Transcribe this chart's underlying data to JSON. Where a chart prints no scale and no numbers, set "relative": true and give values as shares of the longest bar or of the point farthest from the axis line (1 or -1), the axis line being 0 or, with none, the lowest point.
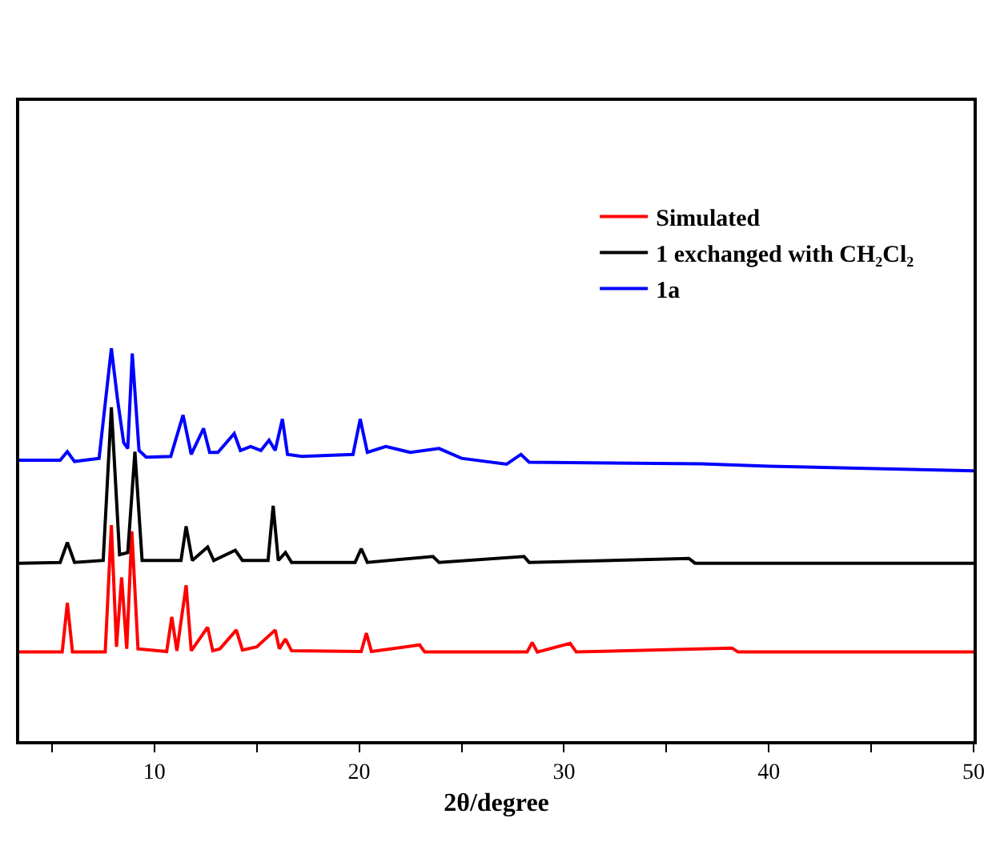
{
  "chart_data": {
    "type": "line",
    "relative": true,
    "xlabel": "2θ/degree",
    "xlim": [
      3.4,
      50
    ],
    "xticks": [
      {
        "value": 5,
        "label": null
      },
      10,
      {
        "value": 15,
        "label": null
      },
      20,
      {
        "value": 25,
        "label": null
      },
      30,
      {
        "value": 35,
        "label": null
      },
      40,
      {
        "value": 45,
        "label": null
      },
      50
    ],
    "legend": "top right",
    "series": [
      {
        "name": "Simulated",
        "color": "#ff0000",
        "x": [
          3.4,
          5.5,
          5.75,
          6.0,
          7.6,
          7.9,
          8.15,
          8.4,
          8.65,
          8.9,
          9.2,
          10.6,
          10.85,
          11.1,
          11.55,
          11.8,
          12.6,
          12.85,
          13.2,
          14.0,
          14.3,
          15.0,
          15.9,
          16.1,
          16.4,
          16.7,
          20.1,
          20.35,
          20.6,
          22.95,
          23.2,
          28.2,
          28.45,
          28.7,
          30.3,
          30.6,
          38.2,
          38.5,
          50
        ],
        "values": [
          0.227,
          0.227,
          0.352,
          0.227,
          0.227,
          0.55,
          0.24,
          0.417,
          0.235,
          0.534,
          0.235,
          0.228,
          0.316,
          0.23,
          0.397,
          0.23,
          0.29,
          0.23,
          0.235,
          0.283,
          0.232,
          0.24,
          0.283,
          0.235,
          0.26,
          0.23,
          0.228,
          0.275,
          0.228,
          0.245,
          0.227,
          0.227,
          0.251,
          0.227,
          0.249,
          0.227,
          0.237,
          0.227,
          0.227
        ]
      },
      {
        "name": "1 exchanged with CH₂Cl₂",
        "color": "#000000",
        "x": [
          3.4,
          5.4,
          5.75,
          6.1,
          7.5,
          7.9,
          8.3,
          8.7,
          9.05,
          9.4,
          11.3,
          11.55,
          11.85,
          12.6,
          12.9,
          13.95,
          14.3,
          15.55,
          15.8,
          16.05,
          16.4,
          16.7,
          19.8,
          20.1,
          20.4,
          23.6,
          23.9,
          28.05,
          28.3,
          36.1,
          36.4,
          50
        ],
        "values": [
          0.453,
          0.455,
          0.506,
          0.455,
          0.46,
          0.85,
          0.475,
          0.48,
          0.737,
          0.46,
          0.46,
          0.547,
          0.46,
          0.494,
          0.46,
          0.486,
          0.46,
          0.46,
          0.599,
          0.46,
          0.48,
          0.455,
          0.455,
          0.49,
          0.455,
          0.47,
          0.455,
          0.47,
          0.455,
          0.465,
          0.453,
          0.453
        ]
      },
      {
        "name": "1a",
        "color": "#0000ff",
        "x": [
          3.4,
          5.4,
          5.75,
          6.1,
          7.3,
          7.9,
          8.2,
          8.5,
          8.7,
          8.92,
          9.25,
          9.6,
          10.8,
          11.4,
          11.8,
          12.4,
          12.7,
          13.1,
          13.9,
          14.2,
          14.7,
          15.2,
          15.6,
          15.9,
          16.25,
          16.5,
          17.2,
          19.7,
          20.05,
          20.4,
          21.3,
          22.5,
          23.9,
          25,
          27.2,
          27.9,
          28.3,
          36.7,
          40,
          50
        ],
        "values": [
          0.715,
          0.715,
          0.737,
          0.712,
          0.72,
          1.0,
          0.87,
          0.76,
          0.745,
          0.987,
          0.74,
          0.723,
          0.725,
          0.83,
          0.73,
          0.796,
          0.735,
          0.735,
          0.783,
          0.74,
          0.75,
          0.74,
          0.766,
          0.74,
          0.82,
          0.73,
          0.725,
          0.73,
          0.82,
          0.735,
          0.75,
          0.735,
          0.745,
          0.72,
          0.705,
          0.73,
          0.71,
          0.706,
          0.7,
          0.688
        ]
      }
    ]
  }
}
